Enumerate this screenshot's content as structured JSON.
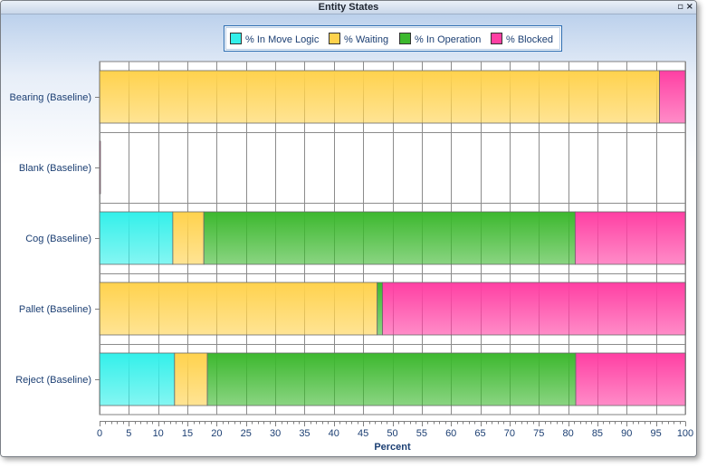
{
  "window": {
    "title": "Entity States",
    "restore_icon": "restore-icon",
    "close_icon": "close-icon",
    "restore_glyph": "▫",
    "close_glyph": "×"
  },
  "chart_data": {
    "type": "bar",
    "orientation": "horizontal",
    "stacked": true,
    "categories": [
      "Bearing (Baseline)",
      "Blank (Baseline)",
      "Cog (Baseline)",
      "Pallet (Baseline)",
      "Reject (Baseline)"
    ],
    "series": [
      {
        "name": "% In Move Logic",
        "color": "#33f0ea",
        "values": [
          0,
          0,
          12.5,
          0,
          12.8
        ]
      },
      {
        "name": "% Waiting",
        "color": "#ffd24d",
        "values": [
          95.6,
          0,
          5.3,
          47.4,
          5.6
        ]
      },
      {
        "name": "% In Operation",
        "color": "#3cb82e",
        "values": [
          0,
          0,
          63.4,
          0.9,
          62.9
        ]
      },
      {
        "name": "% Blocked",
        "color": "#ff3fa3",
        "values": [
          4.4,
          0.1,
          18.8,
          51.7,
          18.7
        ]
      }
    ],
    "xlabel": "Percent",
    "ylabel": "",
    "xlim": [
      0,
      100
    ],
    "xticks": [
      0,
      5,
      10,
      15,
      20,
      25,
      30,
      35,
      40,
      45,
      50,
      55,
      60,
      65,
      70,
      75,
      80,
      85,
      90,
      95,
      100
    ],
    "grid": true,
    "legend_position": "top"
  }
}
